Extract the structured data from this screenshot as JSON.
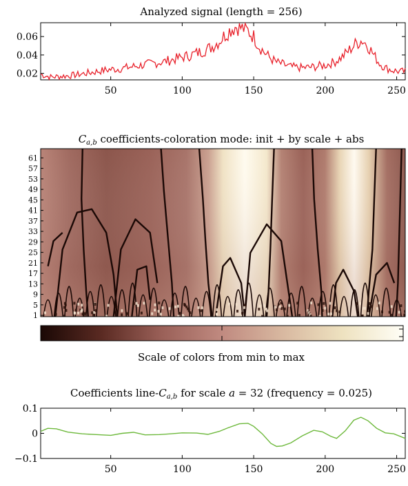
{
  "colors": {
    "signal_line": "#e8202a",
    "coef_line": "#6cb83a",
    "colormap": [
      "#1a0805",
      "#5a2a22",
      "#9a6058",
      "#c08a80",
      "#d8b8a0",
      "#eee2c0",
      "#fffef6"
    ]
  },
  "chart_data": [
    {
      "type": "line",
      "title": "Analyzed signal  (length = 256)",
      "xlim": [
        1,
        256
      ],
      "ylim": [
        0.013,
        0.075
      ],
      "x_ticks": [
        "50",
        "100",
        "150",
        "200",
        "250"
      ],
      "y_ticks": [
        "0.02",
        "0.04",
        "0.06"
      ],
      "grid": false,
      "series": [
        {
          "x": [
            1,
            8,
            16,
            24,
            32,
            40,
            48,
            56,
            64,
            72,
            80,
            88,
            96,
            104,
            112,
            120,
            126,
            130,
            134,
            138,
            142,
            146,
            150,
            154,
            158,
            162,
            166,
            170,
            176,
            184,
            192,
            200,
            206,
            212,
            218,
            222,
            226,
            230,
            234,
            238,
            242,
            248,
            252,
            256
          ],
          "y": [
            0.019,
            0.016,
            0.017,
            0.018,
            0.02,
            0.022,
            0.024,
            0.025,
            0.027,
            0.029,
            0.031,
            0.033,
            0.036,
            0.039,
            0.043,
            0.048,
            0.055,
            0.062,
            0.068,
            0.071,
            0.069,
            0.066,
            0.06,
            0.049,
            0.042,
            0.036,
            0.032,
            0.03,
            0.027,
            0.026,
            0.027,
            0.029,
            0.032,
            0.038,
            0.047,
            0.053,
            0.056,
            0.05,
            0.04,
            0.031,
            0.026,
            0.023,
            0.022,
            0.022
          ]
        }
      ]
    },
    {
      "type": "heatmap",
      "title": [
        "C",
        "a,b",
        " coefficients-coloration mode: init + by scale + abs"
      ],
      "xlim": [
        1,
        256
      ],
      "y_ticks": [
        "1",
        "5",
        "9",
        "13",
        "17",
        "21",
        "25",
        "29",
        "33",
        "37",
        "41",
        "45",
        "49",
        "53",
        "57",
        "61"
      ],
      "ylim": [
        1,
        64
      ],
      "grid": false
    },
    {
      "type": "heatmap",
      "title": "Scale of colors from min to max",
      "legend": "colorbar"
    },
    {
      "type": "line",
      "title": [
        "Coefficients line-",
        "C",
        "a,b",
        " for scale ",
        "a",
        " = 32 (frequency = 0.025)"
      ],
      "xlim": [
        1,
        256
      ],
      "ylim": [
        -0.1,
        0.1
      ],
      "x_ticks": [
        "50",
        "100",
        "150",
        "200",
        "250"
      ],
      "y_ticks": [
        "0.1",
        "0",
        "−0.1"
      ],
      "grid": false,
      "series": [
        {
          "x": [
            1,
            6,
            12,
            20,
            30,
            40,
            50,
            58,
            66,
            74,
            84,
            92,
            100,
            110,
            118,
            126,
            132,
            140,
            146,
            150,
            156,
            162,
            166,
            170,
            176,
            184,
            192,
            198,
            204,
            208,
            214,
            220,
            225,
            230,
            236,
            242,
            248,
            256
          ],
          "y": [
            0.008,
            0.02,
            0.018,
            0.005,
            -0.002,
            -0.005,
            -0.008,
            0.0,
            0.004,
            -0.006,
            -0.005,
            -0.002,
            0.002,
            0.001,
            -0.004,
            0.008,
            0.022,
            0.038,
            0.04,
            0.028,
            -0.002,
            -0.04,
            -0.052,
            -0.05,
            -0.038,
            -0.01,
            0.012,
            0.006,
            -0.012,
            -0.02,
            0.01,
            0.052,
            0.064,
            0.05,
            0.02,
            0.002,
            -0.002,
            -0.02
          ]
        }
      ]
    }
  ]
}
